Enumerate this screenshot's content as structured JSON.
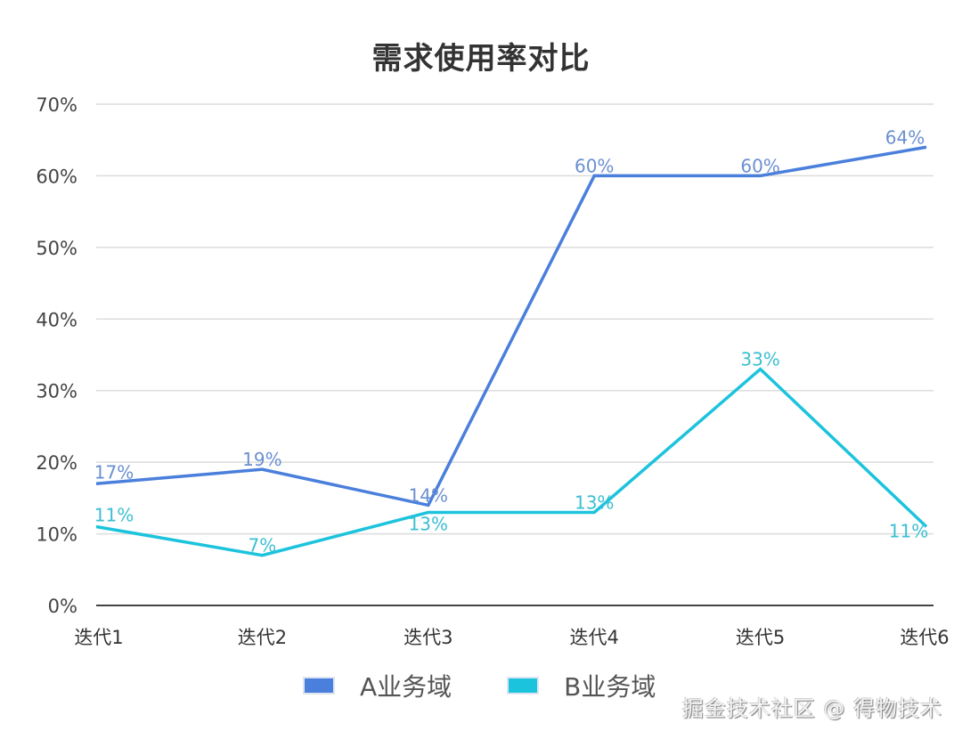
{
  "chart_data": {
    "type": "line",
    "title": "需求使用率对比",
    "xlabel": "",
    "ylabel": "",
    "categories": [
      "迭代1",
      "迭代2",
      "迭代3",
      "迭代4",
      "迭代5",
      "迭代6"
    ],
    "series": [
      {
        "name": "A业务域",
        "color": "#4a7fdc",
        "label_color": "#6a8fd0",
        "values": [
          17,
          19,
          14,
          60,
          60,
          64
        ]
      },
      {
        "name": "B业务域",
        "color": "#1cc3dd",
        "label_color": "#3bbfd2",
        "values": [
          11,
          7,
          13,
          13,
          33,
          11
        ]
      }
    ],
    "y_ticks": [
      "0%",
      "10%",
      "20%",
      "30%",
      "40%",
      "50%",
      "60%",
      "70%"
    ],
    "ylim": [
      0,
      70
    ],
    "grid": true,
    "legend_position": "bottom",
    "data_labels": true,
    "value_suffix": "%"
  },
  "title": "需求使用率对比",
  "legend": [
    {
      "label": "A业务域",
      "color": "#4a7fdc"
    },
    {
      "label": "B业务域",
      "color": "#1cc3dd"
    }
  ],
  "watermark": "掘金技术社区 @ 得物技术"
}
